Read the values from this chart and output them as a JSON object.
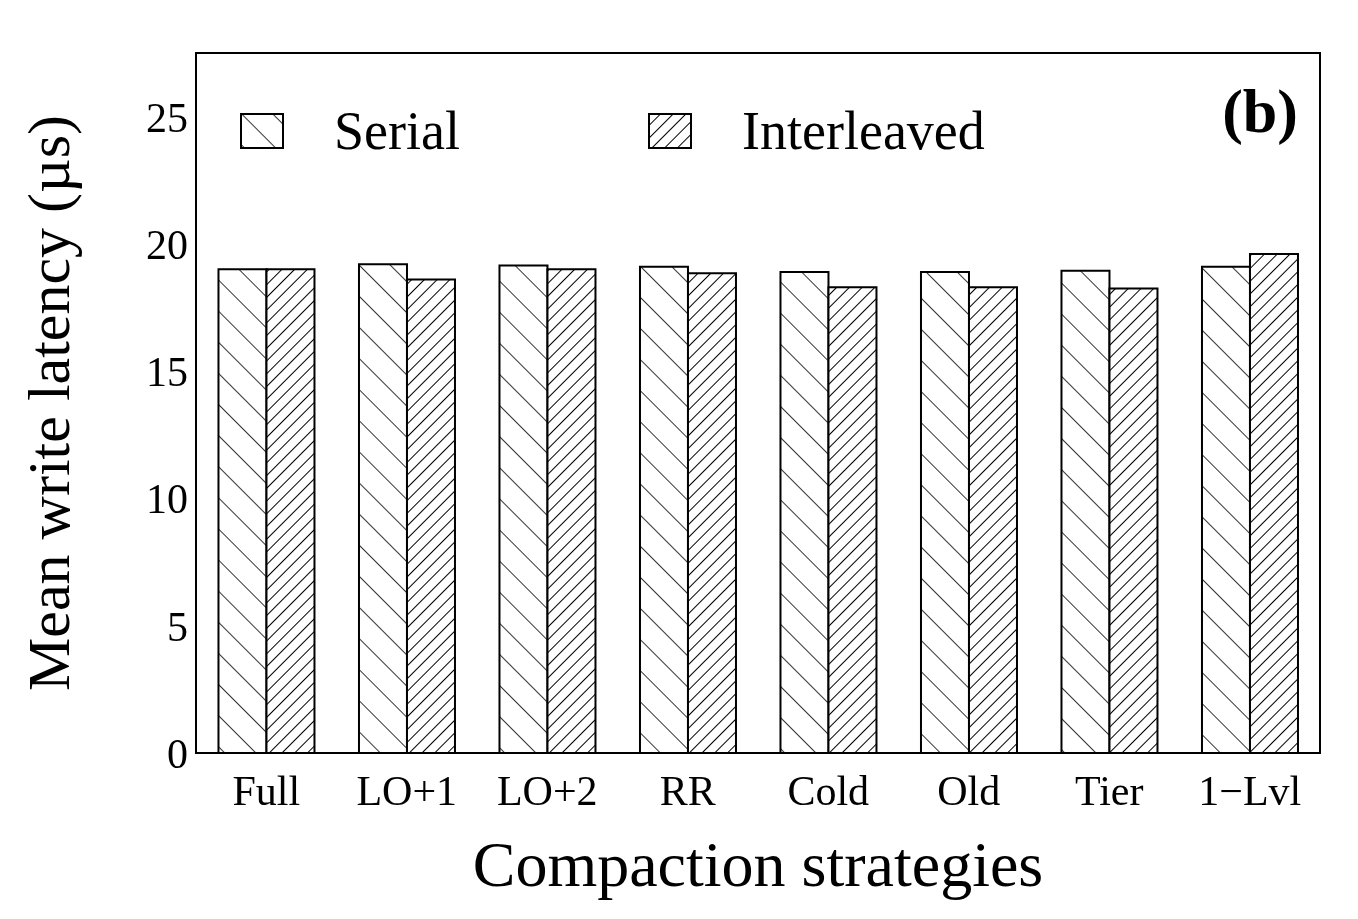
{
  "chart_data": {
    "type": "bar",
    "xlabel": "Compaction strategies",
    "ylabel": "Mean write latency (µs)",
    "annotations": [
      "(b)"
    ],
    "categories": [
      "Full",
      "LO+1",
      "LO+2",
      "RR",
      "Cold",
      "Old",
      "Tier",
      "1−Lvl"
    ],
    "series": [
      {
        "name": "Serial",
        "color": "#000000",
        "values": [
          19.0,
          19.2,
          19.15,
          19.1,
          18.9,
          18.9,
          18.95,
          19.1
        ]
      },
      {
        "name": "Interleaved",
        "color": "#000000",
        "values": [
          19.0,
          18.6,
          19.0,
          18.85,
          18.3,
          18.3,
          18.25,
          19.6
        ]
      }
    ],
    "ylim": [
      0,
      27.5
    ],
    "yticks": [
      0,
      5,
      10,
      15,
      20,
      25
    ],
    "grid": false,
    "legend": "top left"
  }
}
